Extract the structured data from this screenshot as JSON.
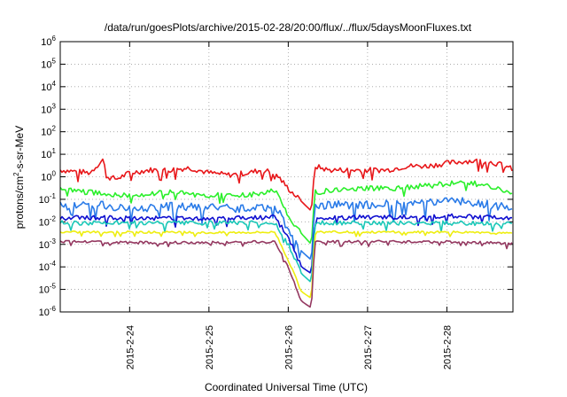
{
  "chart_data": {
    "type": "line",
    "title": "/data/run/goesPlots/archive/2015-02-28/20:00/flux/../flux/5daysMoonFluxes.txt",
    "xlabel": "Coordinated Universal Time (UTC)",
    "ylabel_parts": [
      "protons/cm",
      "2",
      "-s-sr-MeV"
    ],
    "yscale": "log",
    "ylim": [
      1e-06,
      1000000.0
    ],
    "y_tick_exponents": [
      -6,
      -5,
      -4,
      -3,
      -2,
      -1,
      0,
      1,
      2,
      3,
      4,
      5,
      6
    ],
    "y_tick_base": "10",
    "xlim": [
      "2015-02-23T03:00",
      "2015-02-28T20:00"
    ],
    "x_ticks": [
      "2015-2-24",
      "2015-2-25",
      "2015-2-26",
      "2015-2-27",
      "2015-2-28"
    ],
    "grid": true,
    "gap": {
      "start": "2015-02-26T03:30",
      "end": "2015-02-26T07:50"
    },
    "series": [
      {
        "color": "#e8171a",
        "x": [
          "2015-02-23T03:00",
          "2015-02-23T12:00",
          "2015-02-23T16:00",
          "2015-02-23T17:00",
          "2015-02-23T20:00",
          "2015-02-24T00:00",
          "2015-02-24T06:00",
          "2015-02-24T12:00",
          "2015-02-24T18:00",
          "2015-02-25T00:00",
          "2015-02-25T06:00",
          "2015-02-25T12:00",
          "2015-02-25T16:00",
          "2015-02-25T20:00",
          "2015-02-26T00:00",
          "2015-02-26T04:00",
          "2015-02-26T07:00",
          "2015-02-26T08:00",
          "2015-02-26T12:00",
          "2015-02-26T18:00",
          "2015-02-27T00:00",
          "2015-02-27T06:00",
          "2015-02-27T12:00",
          "2015-02-27T18:00",
          "2015-02-28T00:00",
          "2015-02-28T06:00",
          "2015-02-28T12:00",
          "2015-02-28T18:00",
          "2015-02-28T20:00"
        ],
        "y": [
          2,
          1.5,
          6,
          1,
          0.8,
          1.5,
          2,
          2,
          2.5,
          1.5,
          1.2,
          1.5,
          2,
          1.5,
          0.3,
          0.08,
          0.03,
          3,
          2,
          2,
          2,
          2,
          3,
          3,
          4,
          5,
          5,
          3,
          2
        ]
      },
      {
        "color": "#2bef2b",
        "x": [
          "2015-02-23T03:00",
          "2015-02-23T12:00",
          "2015-02-24T00:00",
          "2015-02-24T12:00",
          "2015-02-25T00:00",
          "2015-02-25T12:00",
          "2015-02-25T20:00",
          "2015-02-26T00:00",
          "2015-02-26T04:00",
          "2015-02-26T07:00",
          "2015-02-26T08:00",
          "2015-02-26T18:00",
          "2015-02-27T06:00",
          "2015-02-27T18:00",
          "2015-02-28T06:00",
          "2015-02-28T20:00"
        ],
        "y": [
          0.3,
          0.2,
          0.15,
          0.2,
          0.15,
          0.15,
          0.25,
          0.02,
          0.003,
          0.001,
          0.2,
          0.3,
          0.3,
          0.4,
          0.6,
          0.2
        ]
      },
      {
        "color": "#2a7be8",
        "x": [
          "2015-02-23T03:00",
          "2015-02-23T12:00",
          "2015-02-24T00:00",
          "2015-02-24T12:00",
          "2015-02-25T00:00",
          "2015-02-25T12:00",
          "2015-02-25T20:00",
          "2015-02-26T00:00",
          "2015-02-26T04:00",
          "2015-02-26T07:00",
          "2015-02-26T08:00",
          "2015-02-26T18:00",
          "2015-02-27T06:00",
          "2015-02-27T18:00",
          "2015-02-28T06:00",
          "2015-02-28T20:00"
        ],
        "y": [
          0.05,
          0.06,
          0.04,
          0.05,
          0.04,
          0.04,
          0.05,
          0.005,
          0.0005,
          0.0002,
          0.05,
          0.06,
          0.06,
          0.07,
          0.08,
          0.04
        ]
      },
      {
        "color": "#1010d0",
        "x": [
          "2015-02-23T03:00",
          "2015-02-24T00:00",
          "2015-02-25T00:00",
          "2015-02-25T20:00",
          "2015-02-26T00:00",
          "2015-02-26T04:00",
          "2015-02-26T07:00",
          "2015-02-26T08:00",
          "2015-02-27T00:00",
          "2015-02-28T00:00",
          "2015-02-28T20:00"
        ],
        "y": [
          0.015,
          0.015,
          0.014,
          0.016,
          0.002,
          0.0001,
          5e-05,
          0.015,
          0.016,
          0.018,
          0.015
        ]
      },
      {
        "color": "#1bc8b8",
        "x": [
          "2015-02-23T03:00",
          "2015-02-24T00:00",
          "2015-02-25T00:00",
          "2015-02-25T20:00",
          "2015-02-26T00:00",
          "2015-02-26T04:00",
          "2015-02-26T07:00",
          "2015-02-26T08:00",
          "2015-02-27T00:00",
          "2015-02-28T00:00",
          "2015-02-28T20:00"
        ],
        "y": [
          0.009,
          0.009,
          0.009,
          0.009,
          0.001,
          5e-05,
          2e-05,
          0.009,
          0.009,
          0.009,
          0.008
        ]
      },
      {
        "color": "#eeee10",
        "x": [
          "2015-02-23T03:00",
          "2015-02-24T00:00",
          "2015-02-25T00:00",
          "2015-02-25T20:00",
          "2015-02-26T00:00",
          "2015-02-26T04:00",
          "2015-02-26T07:00",
          "2015-02-26T08:00",
          "2015-02-27T00:00",
          "2015-02-28T00:00",
          "2015-02-28T20:00"
        ],
        "y": [
          0.0035,
          0.0035,
          0.0033,
          0.0035,
          0.0002,
          8e-06,
          4e-06,
          0.0035,
          0.0035,
          0.0035,
          0.003
        ]
      },
      {
        "color": "#943860",
        "x": [
          "2015-02-23T03:00",
          "2015-02-24T00:00",
          "2015-02-25T00:00",
          "2015-02-25T20:00",
          "2015-02-26T00:00",
          "2015-02-26T04:00",
          "2015-02-26T07:00",
          "2015-02-26T08:00",
          "2015-02-27T00:00",
          "2015-02-28T00:00",
          "2015-02-28T20:00"
        ],
        "y": [
          0.0013,
          0.0012,
          0.0012,
          0.0013,
          0.0001,
          3e-06,
          1.5e-06,
          0.0013,
          0.0013,
          0.0013,
          0.0011
        ]
      }
    ]
  }
}
